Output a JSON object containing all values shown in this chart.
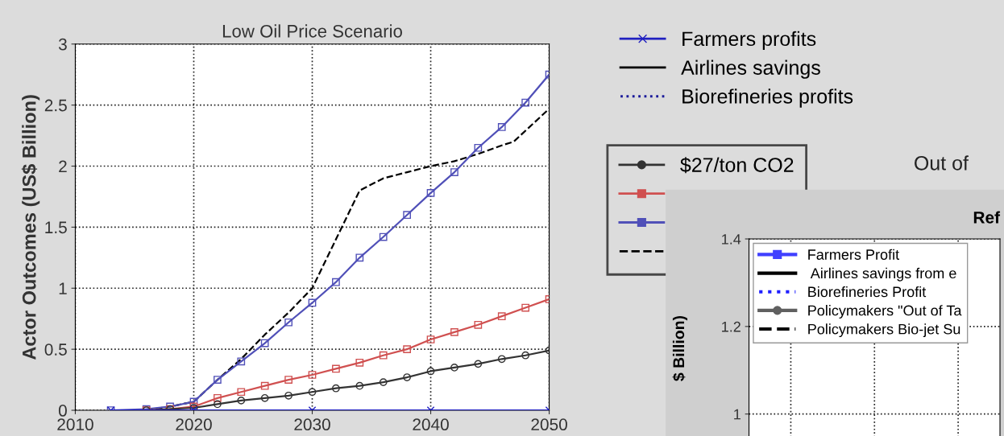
{
  "chart_data": [
    {
      "type": "line",
      "title": "Low Oil Price Scenario",
      "ylabel": "Actor Outcomes (US$ Billion)",
      "xlim": [
        2010,
        2050
      ],
      "xticks": [
        2010,
        2020,
        2030,
        2040,
        2050
      ],
      "ylim": [
        0,
        3
      ],
      "yticks": [
        0,
        0.5,
        1,
        1.5,
        2,
        2.5,
        3
      ],
      "grid": true,
      "legend": "right",
      "annotations": [
        "Out of"
      ],
      "series": [
        {
          "name": "Farmers profits",
          "color": "#2020c0",
          "marker": "cross",
          "line_style": "solid",
          "x": [
            2013,
            2020,
            2030,
            2040,
            2050
          ],
          "values": [
            0,
            0,
            0,
            0,
            0
          ]
        },
        {
          "name": "Airlines savings",
          "color": "#000000",
          "marker": "none",
          "line_style": "solid"
        },
        {
          "name": "Biorefineries profits",
          "color": "#1a1a9a",
          "marker": "none",
          "line_style": "dotted"
        },
        {
          "name": "$27/ton CO2",
          "color": "#333333",
          "marker": "circle",
          "line_style": "solid",
          "x": [
            2016,
            2018,
            2020,
            2022,
            2024,
            2026,
            2028,
            2030,
            2032,
            2034,
            2036,
            2038,
            2040,
            2042,
            2044,
            2046,
            2048,
            2050
          ],
          "values": [
            0,
            0.01,
            0.02,
            0.05,
            0.08,
            0.1,
            0.12,
            0.15,
            0.18,
            0.2,
            0.23,
            0.27,
            0.32,
            0.35,
            0.38,
            0.42,
            0.45,
            0.49
          ]
        },
        {
          "color": "#d05050",
          "marker": "square",
          "line_style": "solid",
          "x": [
            2016,
            2018,
            2020,
            2022,
            2024,
            2026,
            2028,
            2030,
            2032,
            2034,
            2036,
            2038,
            2040,
            2042,
            2044,
            2046,
            2048,
            2050
          ],
          "values": [
            0,
            0.01,
            0.03,
            0.1,
            0.15,
            0.2,
            0.25,
            0.29,
            0.34,
            0.39,
            0.45,
            0.5,
            0.58,
            0.64,
            0.7,
            0.77,
            0.84,
            0.91
          ]
        },
        {
          "color": "#5050b8",
          "marker": "square",
          "line_style": "solid",
          "x": [
            2013,
            2016,
            2018,
            2020,
            2022,
            2024,
            2026,
            2028,
            2030,
            2032,
            2034,
            2036,
            2038,
            2040,
            2042,
            2044,
            2046,
            2048,
            2050
          ],
          "values": [
            0,
            0.01,
            0.03,
            0.07,
            0.25,
            0.4,
            0.55,
            0.72,
            0.88,
            1.05,
            1.25,
            1.42,
            1.6,
            1.78,
            1.95,
            2.15,
            2.32,
            2.52,
            2.75
          ]
        },
        {
          "color": "#000000",
          "marker": "none",
          "line_style": "dashed",
          "x": [
            2016,
            2018,
            2020,
            2022,
            2024,
            2026,
            2028,
            2030,
            2032,
            2034,
            2036,
            2038,
            2040,
            2042,
            2044,
            2046,
            2047,
            2050
          ],
          "values": [
            0,
            0.03,
            0.07,
            0.25,
            0.42,
            0.62,
            0.8,
            1.0,
            1.4,
            1.8,
            1.9,
            1.95,
            2.0,
            2.04,
            2.1,
            2.17,
            2.2,
            2.47
          ]
        }
      ]
    },
    {
      "type": "line",
      "title": "Ref",
      "ylabel": "$ Billion)",
      "categories": [
        null,
        null,
        null
      ],
      "ylim": [
        0.9,
        1.4
      ],
      "yticks": [
        1,
        1.2,
        1.4
      ],
      "grid": true,
      "legend": "top left",
      "tick_labels": "y",
      "series": [
        {
          "name": "Farmers Profit",
          "color": "#4040ff",
          "marker": "square",
          "line_style": "solid",
          "values": [
            null,
            null,
            null
          ]
        },
        {
          "name": " Airlines savings from e",
          "color": "#000000",
          "marker": "none",
          "line_style": "solid",
          "values": [
            null,
            null,
            null
          ]
        },
        {
          "name": "Biorefineries Profit",
          "color": "#2020ff",
          "marker": "none",
          "line_style": "dotted",
          "values": [
            null,
            null,
            null
          ]
        },
        {
          "name": "Policymakers \"Out of Ta",
          "color": "#606060",
          "marker": "circle",
          "line_style": "solid",
          "values": [
            null,
            null,
            null
          ]
        },
        {
          "name": "Policymakers Bio-jet Su",
          "color": "#000000",
          "marker": "none",
          "line_style": "dashed",
          "values": [
            null,
            null,
            null
          ]
        }
      ]
    }
  ]
}
